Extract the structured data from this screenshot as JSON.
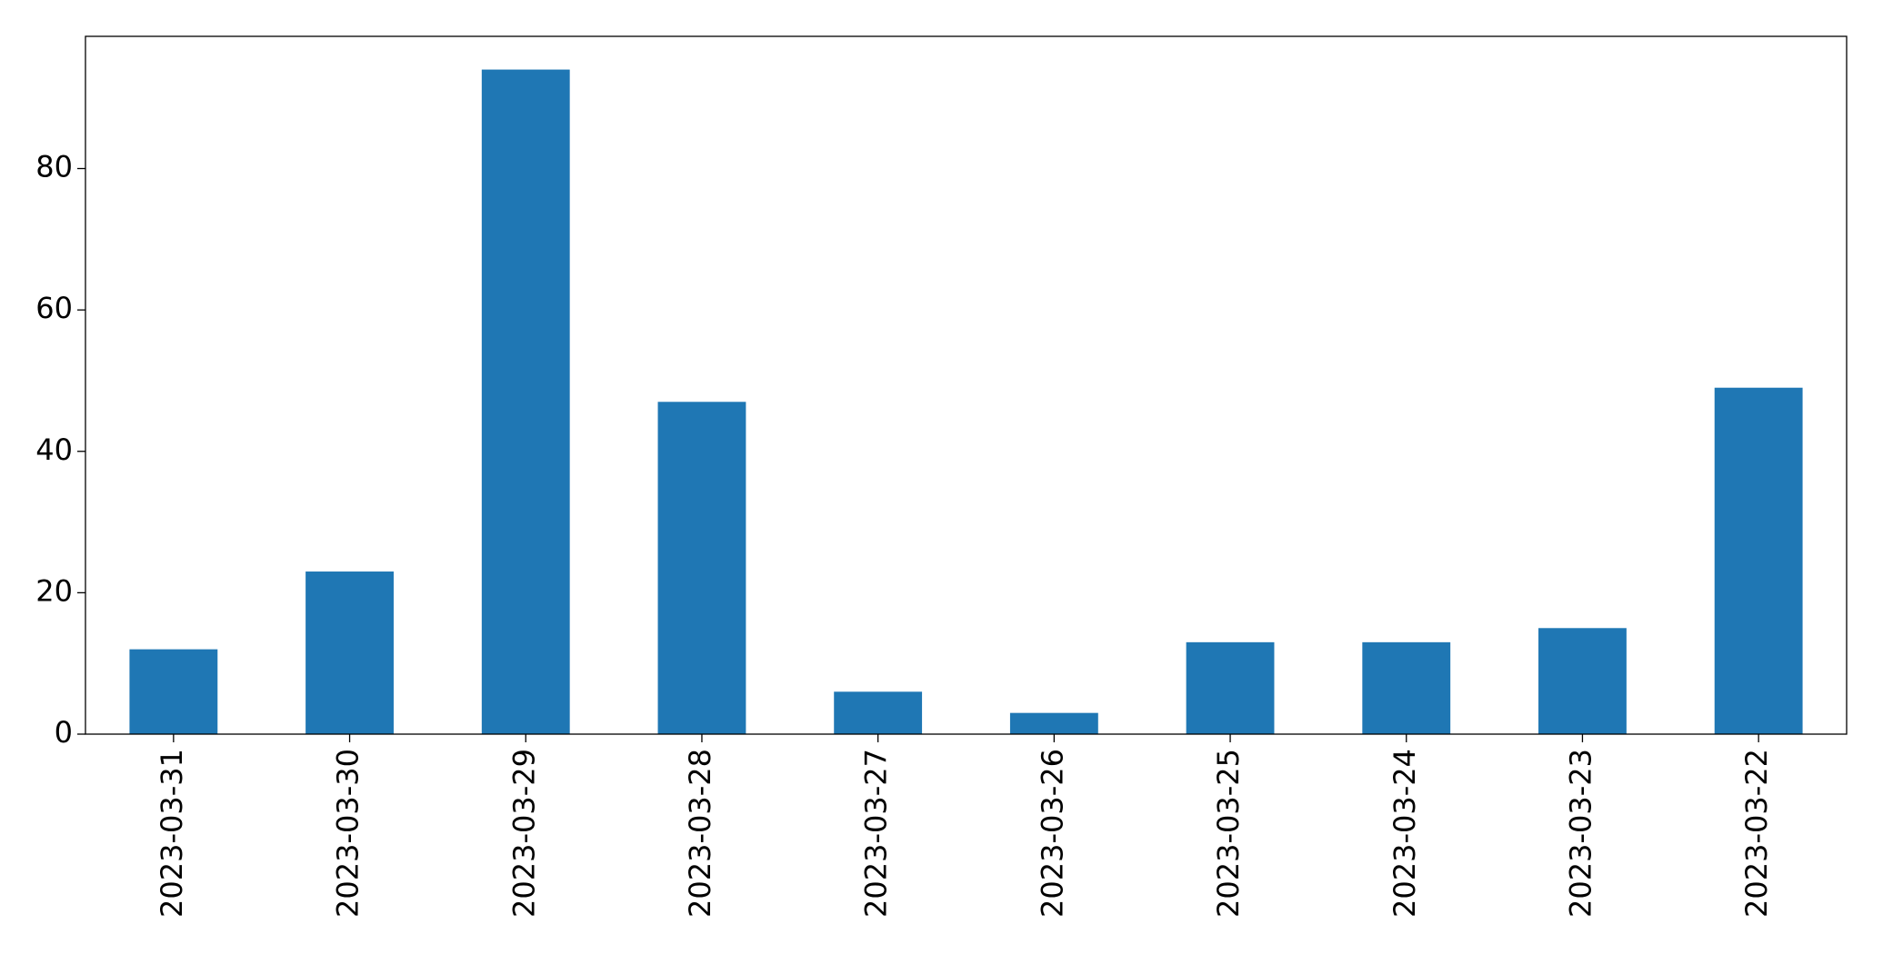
{
  "chart_data": {
    "type": "bar",
    "categories": [
      "2023-03-31",
      "2023-03-30",
      "2023-03-29",
      "2023-03-28",
      "2023-03-27",
      "2023-03-26",
      "2023-03-25",
      "2023-03-24",
      "2023-03-23",
      "2023-03-22"
    ],
    "values": [
      12,
      23,
      94,
      47,
      6,
      3,
      13,
      13,
      15,
      49
    ],
    "color": "#1f77b4",
    "ylim": [
      0,
      98.7
    ],
    "yticks": [
      0,
      20,
      40,
      60,
      80
    ],
    "grid": false
  }
}
